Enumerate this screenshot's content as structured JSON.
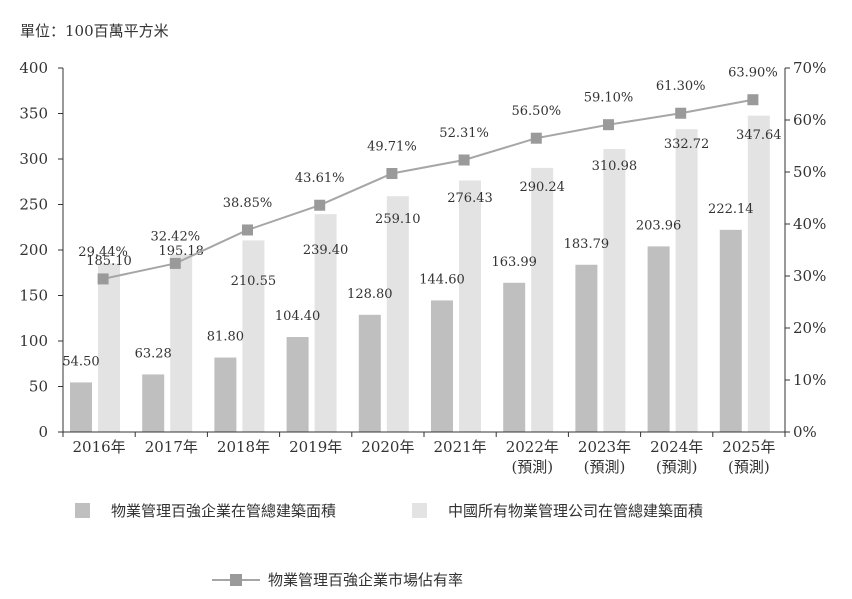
{
  "chart_data": {
    "type": "bar",
    "unit_label": "單位：100百萬平方米",
    "categories": [
      "2016年",
      "2017年",
      "2018年",
      "2019年",
      "2020年",
      "2021年",
      "2022年",
      "2023年",
      "2024年",
      "2025年"
    ],
    "category_notes": [
      "",
      "",
      "",
      "",
      "",
      "",
      "(預測)",
      "(預測)",
      "(預測)",
      "(預測)"
    ],
    "ylim_left": [
      0,
      400
    ],
    "yticks_left": [
      "0",
      "50",
      "100",
      "150",
      "200",
      "250",
      "300",
      "350",
      "400"
    ],
    "ylim_right": [
      0,
      70
    ],
    "yticks_right": [
      "0%",
      "10%",
      "20%",
      "30%",
      "40%",
      "50%",
      "60%",
      "70%"
    ],
    "series": [
      {
        "name": "物業管理百強企業在管總建築面積",
        "type": "bar",
        "color": "#bfbfbf",
        "values": [
          54.5,
          63.28,
          81.8,
          104.4,
          128.8,
          144.6,
          163.99,
          183.79,
          203.96,
          222.14
        ],
        "labels": [
          "54.50",
          "63.28",
          "81.80",
          "104.40",
          "128.80",
          "144.60",
          "163.99",
          "183.79",
          "203.96",
          "222.14"
        ]
      },
      {
        "name": "中國所有物業管理公司在管總建築面積",
        "type": "bar",
        "color": "#e3e3e3",
        "values": [
          185.1,
          195.18,
          210.55,
          239.4,
          259.1,
          276.43,
          290.24,
          310.98,
          332.72,
          347.64
        ],
        "labels": [
          "185.10",
          "195.18",
          "210.55",
          "239.40",
          "259.10",
          "276.43",
          "290.24",
          "310.98",
          "332.72",
          "347.64"
        ]
      },
      {
        "name": "物業管理百強企業市場佔有率",
        "type": "line",
        "axis": "right",
        "color": "#a6a6a6",
        "marker_color": "#9a9a9a",
        "values": [
          29.44,
          32.42,
          38.85,
          43.61,
          49.71,
          52.31,
          56.5,
          59.1,
          61.3,
          63.9
        ],
        "labels": [
          "29.44%",
          "32.42%",
          "38.85%",
          "43.61%",
          "49.71%",
          "52.31%",
          "56.50%",
          "59.10%",
          "61.30%",
          "63.90%"
        ]
      }
    ],
    "legend_position": "bottom",
    "grid": false
  }
}
